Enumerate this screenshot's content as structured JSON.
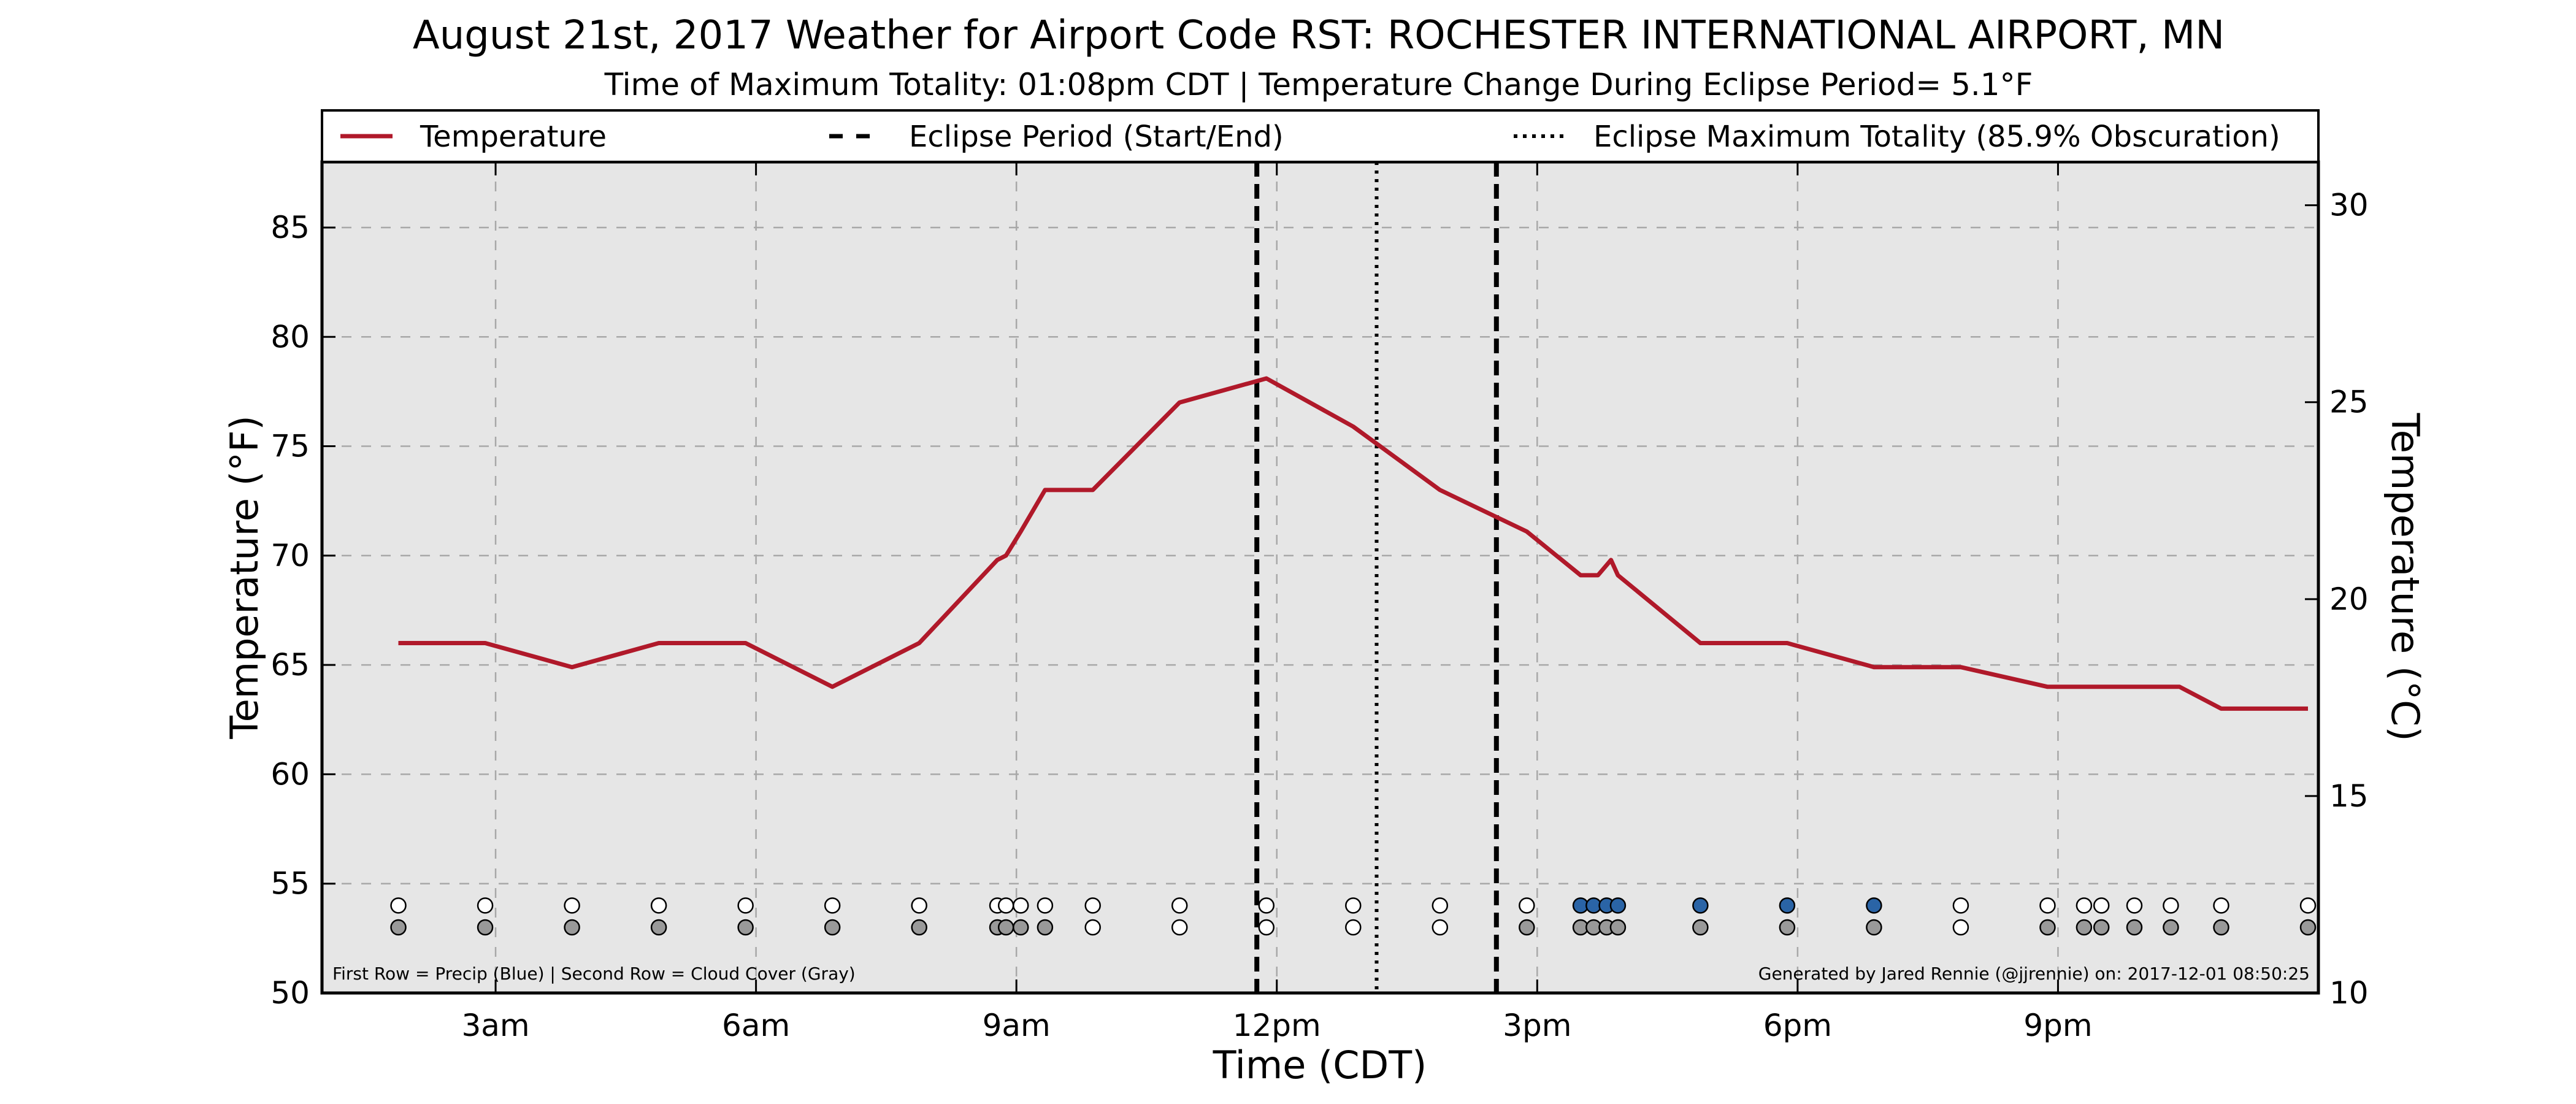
{
  "chart_data": {
    "type": "line",
    "title": "August 21st, 2017 Weather for Airport Code RST: ROCHESTER INTERNATIONAL AIRPORT, MN",
    "subtitle": "Time of Maximum Totality: 01:08pm CDT | Temperature Change During Eclipse Period= 5.1$^\\circ$F",
    "subtitle_display": "Time of Maximum Totality: 01:08pm CDT | Temperature Change During Eclipse Period= 5.1°F",
    "xlabel": "Time (CDT)",
    "ylabel": "Temperature (°F)",
    "ylabel_right": "Temperature (°C)",
    "xlim": [
      1,
      24
    ],
    "ylim": [
      50,
      88
    ],
    "ylim_right": [
      10,
      31.1
    ],
    "x_ticks": [
      3,
      6,
      9,
      12,
      15,
      18,
      21
    ],
    "x_tick_labels": [
      "3am",
      "6am",
      "9am",
      "12pm",
      "3pm",
      "6pm",
      "9pm"
    ],
    "y_ticks": [
      50,
      55,
      60,
      65,
      70,
      75,
      80,
      85
    ],
    "y_tick_labels": [
      "50",
      "55",
      "60",
      "65",
      "70",
      "75",
      "80",
      "85"
    ],
    "y_ticks_right": [
      10,
      15,
      20,
      25,
      30
    ],
    "y_tick_labels_right": [
      "10",
      "15",
      "20",
      "25",
      "30"
    ],
    "grid": true,
    "legend_placement": "top (above plot)",
    "legend": [
      {
        "label": "Temperature",
        "style": "solid"
      },
      {
        "label": "Eclipse Period (Start/End)",
        "style": "dashed"
      },
      {
        "label": "Eclipse Maximum Totality (85.9% Obscuration)",
        "style": "dotted"
      }
    ],
    "series": [
      {
        "name": "Temperature",
        "color": "#b0192a",
        "x": [
          1.88,
          2.88,
          3.88,
          4.88,
          5.88,
          6.88,
          7.88,
          8.78,
          8.88,
          9.05,
          9.33,
          9.88,
          10.88,
          11.88,
          12.88,
          13.88,
          14.88,
          15.5,
          15.7,
          15.85,
          15.93,
          16.88,
          17.88,
          18.88,
          19.2,
          19.88,
          20.88,
          21.88,
          22.4,
          22.88,
          23.88
        ],
        "y": [
          66,
          66,
          64.9,
          66,
          66,
          64,
          66,
          69.8,
          70,
          71.1,
          73,
          73,
          77,
          78.1,
          75.9,
          73,
          71.1,
          69.1,
          69.1,
          69.8,
          69.1,
          66,
          66,
          64.9,
          64.9,
          64.9,
          64,
          64,
          64,
          63,
          63
        ]
      }
    ],
    "eclipse_start": 11.77,
    "eclipse_end": 14.53,
    "eclipse_max": 13.15,
    "precip_row": {
      "y": 54,
      "x": [
        1.88,
        2.88,
        3.88,
        4.88,
        5.88,
        6.88,
        7.88,
        8.78,
        8.88,
        9.05,
        9.33,
        9.88,
        10.88,
        11.88,
        12.88,
        13.88,
        14.88,
        15.5,
        15.65,
        15.8,
        15.93,
        16.88,
        17.88,
        18.88,
        19.88,
        20.88,
        21.3,
        21.5,
        21.88,
        22.3,
        22.88,
        23.88
      ],
      "color": [
        "white",
        "white",
        "white",
        "white",
        "white",
        "white",
        "white",
        "white",
        "white",
        "white",
        "white",
        "white",
        "white",
        "white",
        "white",
        "white",
        "white",
        "blue",
        "blue",
        "blue",
        "blue",
        "blue",
        "blue",
        "blue",
        "white",
        "white",
        "white",
        "white",
        "white",
        "white",
        "white",
        "white"
      ]
    },
    "cloud_row": {
      "y": 53,
      "x": [
        1.88,
        2.88,
        3.88,
        4.88,
        5.88,
        6.88,
        7.88,
        8.78,
        8.88,
        9.05,
        9.33,
        9.88,
        10.88,
        11.88,
        12.88,
        13.88,
        14.88,
        15.5,
        15.65,
        15.8,
        15.93,
        16.88,
        17.88,
        18.88,
        19.88,
        20.88,
        21.3,
        21.5,
        21.88,
        22.3,
        22.88,
        23.88
      ],
      "color": [
        "gray",
        "gray",
        "gray",
        "gray",
        "gray",
        "gray",
        "gray",
        "gray",
        "gray",
        "gray",
        "gray",
        "white",
        "white",
        "white",
        "white",
        "white",
        "gray",
        "gray",
        "gray",
        "gray",
        "gray",
        "gray",
        "gray",
        "gray",
        "white",
        "gray",
        "gray",
        "gray",
        "gray",
        "gray",
        "gray",
        "gray"
      ]
    },
    "marker_colors": {
      "white": "#ffffff",
      "gray": "#999999",
      "blue": "#2a64a6"
    },
    "annotation_left": "First Row = Precip (Blue) | Second Row = Cloud Cover (Gray)",
    "annotation_right": "Generated by Jared Rennie (@jjrennie) on: 2017-12-01 08:50:25",
    "plot_background": "#e6e6e6",
    "grid_color": "#a8a8a8"
  }
}
